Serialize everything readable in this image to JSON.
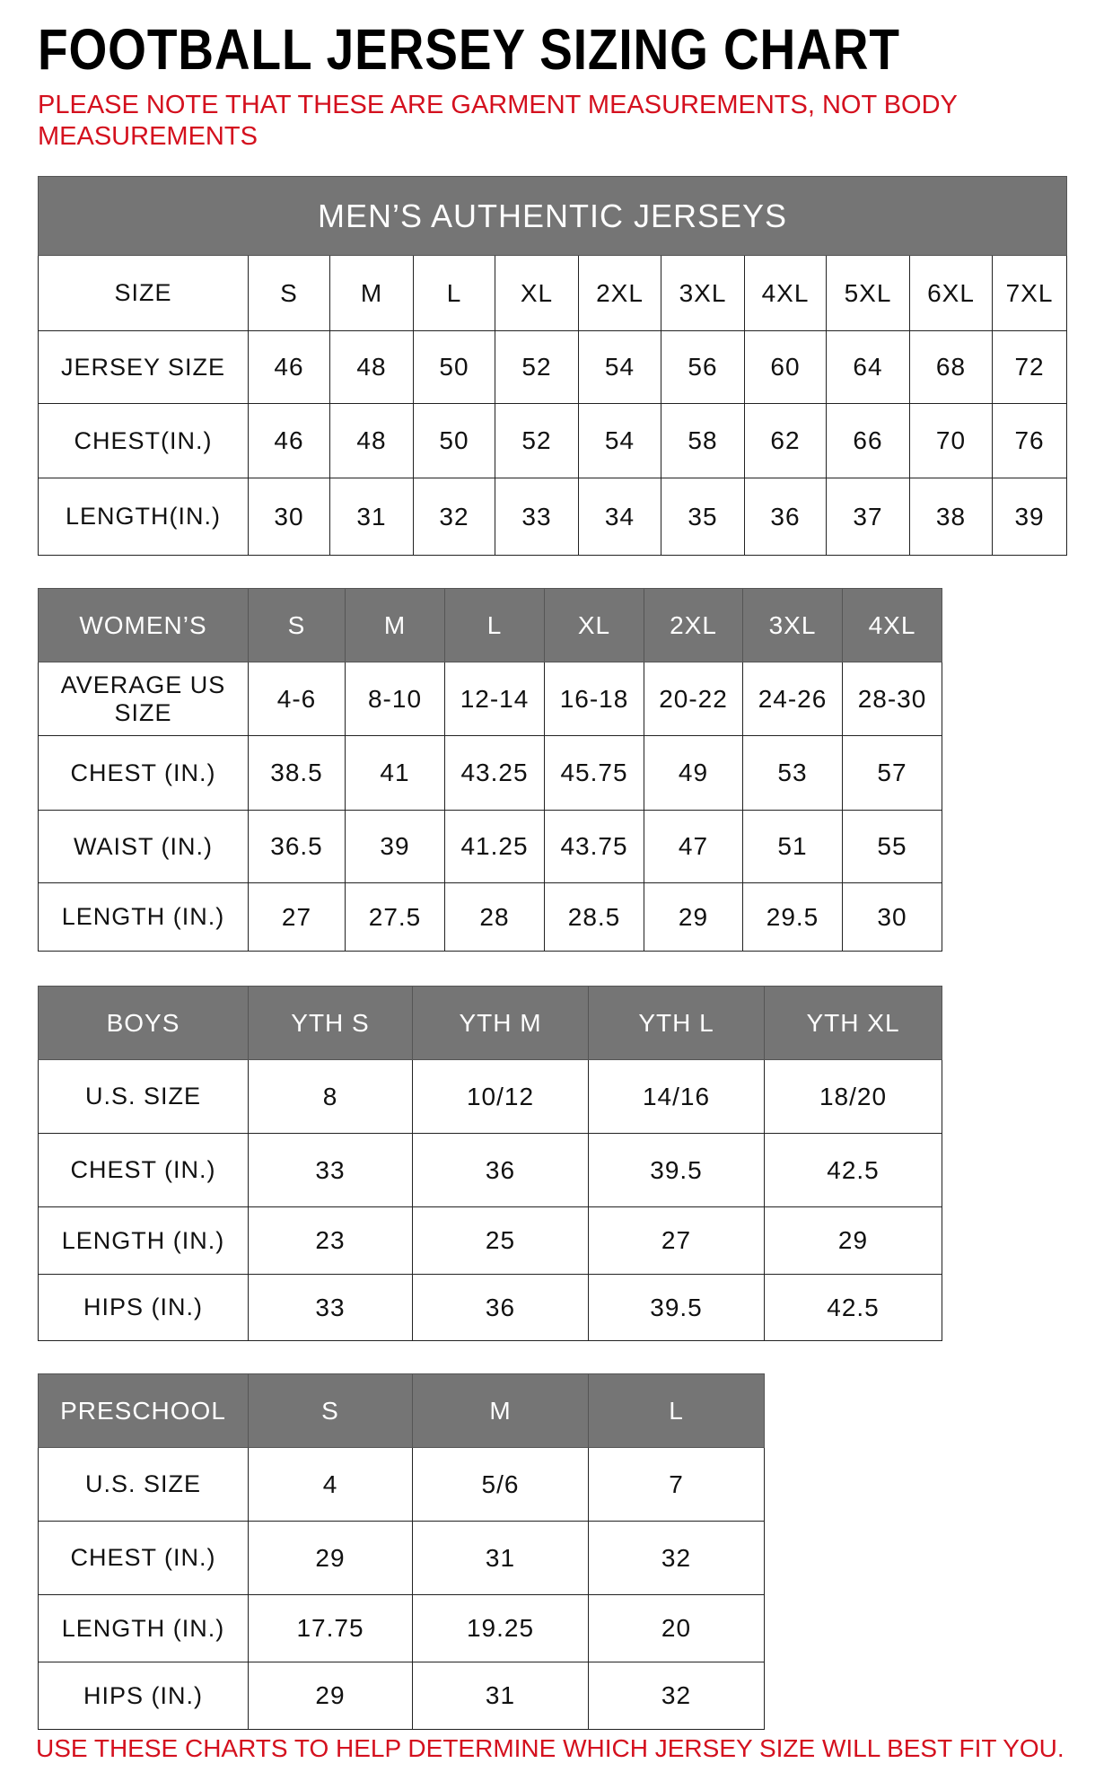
{
  "title": "FOOTBALL JERSEY SIZING CHART",
  "note": "PLEASE NOTE THAT THESE ARE GARMENT MEASUREMENTS, NOT BODY MEASUREMENTS",
  "footer": "USE THESE CHARTS TO HELP DETERMINE WHICH JERSEY SIZE WILL BEST FIT YOU.",
  "colors": {
    "header_bg": "#757575",
    "note_red": "#d4101e"
  },
  "tables": [
    {
      "id": "mens",
      "banner": "MEN’S AUTHENTIC JERSEYS",
      "header": [
        "SIZE",
        "S",
        "M",
        "L",
        "XL",
        "2XL",
        "3XL",
        "4XL",
        "5XL",
        "6XL",
        "7XL"
      ],
      "header_is_row": true,
      "rows": [
        [
          "JERSEY SIZE",
          "46",
          "48",
          "50",
          "52",
          "54",
          "56",
          "60",
          "64",
          "68",
          "72"
        ],
        [
          "CHEST(IN.)",
          "46",
          "48",
          "50",
          "52",
          "54",
          "58",
          "62",
          "66",
          "70",
          "76"
        ],
        [
          "LENGTH(IN.)",
          "30",
          "31",
          "32",
          "33",
          "34",
          "35",
          "36",
          "37",
          "38",
          "39"
        ]
      ]
    },
    {
      "id": "womens",
      "header": [
        "WOMEN’S",
        "S",
        "M",
        "L",
        "XL",
        "2XL",
        "3XL",
        "4XL"
      ],
      "rows": [
        [
          "AVERAGE US SIZE",
          "4-6",
          "8-10",
          "12-14",
          "16-18",
          "20-22",
          "24-26",
          "28-30"
        ],
        [
          "CHEST (IN.)",
          "38.5",
          "41",
          "43.25",
          "45.75",
          "49",
          "53",
          "57"
        ],
        [
          "WAIST (IN.)",
          "36.5",
          "39",
          "41.25",
          "43.75",
          "47",
          "51",
          "55"
        ],
        [
          "LENGTH (IN.)",
          "27",
          "27.5",
          "28",
          "28.5",
          "29",
          "29.5",
          "30"
        ]
      ]
    },
    {
      "id": "boys",
      "header": [
        "BOYS",
        "YTH S",
        "YTH M",
        "YTH L",
        "YTH XL"
      ],
      "rows": [
        [
          "U.S. SIZE",
          "8",
          "10/12",
          "14/16",
          "18/20"
        ],
        [
          "CHEST (IN.)",
          "33",
          "36",
          "39.5",
          "42.5"
        ],
        [
          "LENGTH (IN.)",
          "23",
          "25",
          "27",
          "29"
        ],
        [
          "HIPS (IN.)",
          "33",
          "36",
          "39.5",
          "42.5"
        ]
      ]
    },
    {
      "id": "preschool",
      "header": [
        "PRESCHOOL",
        "S",
        "M",
        "L"
      ],
      "rows": [
        [
          "U.S. SIZE",
          "4",
          "5/6",
          "7"
        ],
        [
          "CHEST (IN.)",
          "29",
          "31",
          "32"
        ],
        [
          "LENGTH (IN.)",
          "17.75",
          "19.25",
          "20"
        ],
        [
          "HIPS (IN.)",
          "29",
          "31",
          "32"
        ]
      ]
    }
  ]
}
